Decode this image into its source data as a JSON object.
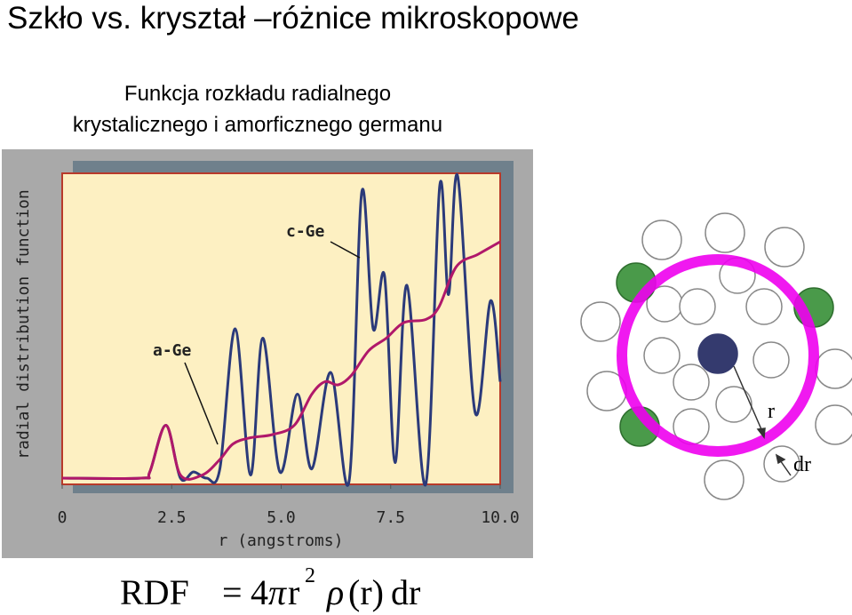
{
  "header": {
    "title": "Szkło vs. kryształ –różnice mikroskopowe",
    "subtitle_lines": [
      "Funkcja rozkładu radialnego",
      "krystalicznego i amorficznego germanu"
    ]
  },
  "chart_data": {
    "type": "line",
    "x_label": "r (angstroms)",
    "y_label": "radial distribution function",
    "xlim": [
      0,
      10
    ],
    "ylim": [
      0,
      10
    ],
    "xticks": [
      0,
      2.5,
      {
        "value": 5,
        "label": "5.0"
      },
      7.5,
      {
        "value": 10,
        "label": "10.0"
      }
    ],
    "series": [
      {
        "name": "c-Ge",
        "color": "#2b3a7a",
        "x": [
          0,
          1.8,
          2.0,
          2.37,
          2.7,
          3.0,
          3.3,
          3.6,
          3.95,
          4.3,
          4.58,
          4.97,
          5.37,
          5.7,
          6.13,
          6.55,
          6.84,
          7.1,
          7.36,
          7.6,
          7.87,
          8.3,
          8.62,
          8.82,
          9.03,
          9.43,
          9.78,
          10
        ],
        "values": [
          0.2,
          0.2,
          0.4,
          1.9,
          0.2,
          0.4,
          0.2,
          0.5,
          5.0,
          0.3,
          4.7,
          0.4,
          2.9,
          0.5,
          3.6,
          0.1,
          9.4,
          5.0,
          6.7,
          0.7,
          6.4,
          0.0,
          9.6,
          6.1,
          9.9,
          2.3,
          5.9,
          3.3
        ]
      },
      {
        "name": "a-Ge",
        "color": "#b0186a",
        "x": [
          0,
          1.8,
          2.0,
          2.37,
          2.7,
          3.2,
          3.6,
          3.9,
          4.3,
          4.8,
          5.3,
          5.7,
          6.0,
          6.3,
          6.6,
          7.0,
          7.4,
          7.8,
          8.3,
          8.6,
          9.0,
          9.5,
          10
        ],
        "values": [
          0.2,
          0.2,
          0.4,
          1.9,
          0.3,
          0.3,
          0.8,
          1.3,
          1.5,
          1.6,
          1.9,
          2.9,
          3.3,
          3.2,
          3.5,
          4.3,
          4.7,
          5.2,
          5.3,
          5.7,
          7.0,
          7.4,
          7.8
        ]
      }
    ]
  },
  "diagram": {
    "labels": {
      "radius": "r",
      "shell": "dr"
    }
  },
  "formula": {
    "lhs": "RDF",
    "equals": "=",
    "factor": "4",
    "pi": "π",
    "r": "r",
    "exponent": "2",
    "rho": "ρ",
    "arg": "(r)",
    "diff": "dr"
  }
}
